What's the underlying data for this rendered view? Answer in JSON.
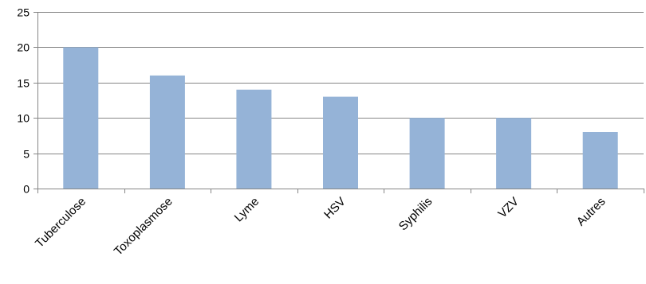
{
  "chart_data": {
    "type": "bar",
    "categories": [
      "Tuberculose",
      "Toxoplasmose",
      "Lyme",
      "HSV",
      "Syphilis",
      "VZV",
      "Autres"
    ],
    "values": [
      20,
      16,
      14,
      13,
      10,
      10,
      8
    ],
    "yticks": [
      "0",
      "5",
      "10",
      "15",
      "20",
      "25"
    ],
    "ylim": [
      0,
      25
    ],
    "grid": true,
    "legend": "none",
    "colors": {
      "bar": "#95b3d7",
      "grid": "#868686",
      "axis": "#868686"
    }
  }
}
